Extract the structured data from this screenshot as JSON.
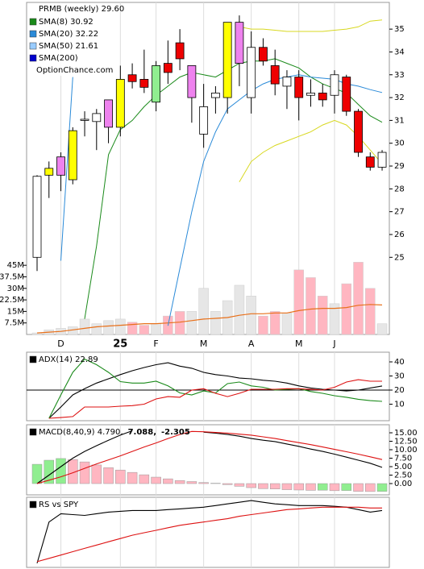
{
  "chart_data": [
    {
      "type": "candlestick",
      "title": "PRMB (weekly) 29.60",
      "watermark": "OptionChance.com",
      "grid": true,
      "categories": [
        null,
        null,
        "D",
        null,
        null,
        null,
        null,
        "25",
        null,
        null,
        "F",
        null,
        null,
        null,
        "M",
        null,
        null,
        null,
        "A",
        null,
        null,
        null,
        "M",
        null,
        null,
        "J",
        null,
        null,
        null,
        null
      ],
      "open": [
        25.0,
        28.6,
        28.6,
        28.4,
        31.0,
        30.95,
        30.7,
        30.7,
        33.0,
        32.8,
        31.8,
        33.5,
        34.4,
        32.0,
        30.4,
        32.0,
        32.0,
        33.5,
        32.0,
        34.2,
        33.4,
        32.5,
        32.9,
        32.2,
        32.2,
        32.1,
        32.9,
        31.4,
        29.4,
        28.95
      ],
      "high": [
        28.6,
        29.2,
        29.6,
        30.7,
        31.4,
        31.5,
        31.9,
        33.4,
        33.5,
        34.1,
        33.6,
        34.5,
        35.0,
        33.3,
        32.6,
        32.5,
        35.3,
        35.6,
        34.9,
        34.6,
        34.1,
        33.2,
        33.2,
        32.8,
        32.6,
        33.2,
        33.0,
        31.5,
        29.6,
        29.7
      ],
      "low": [
        24.4,
        27.6,
        27.9,
        28.2,
        30.3,
        29.7,
        30.0,
        30.3,
        32.4,
        32.2,
        31.4,
        32.6,
        33.2,
        30.9,
        29.8,
        31.3,
        31.3,
        32.5,
        31.3,
        33.4,
        32.1,
        31.5,
        31.0,
        31.6,
        31.6,
        31.3,
        31.2,
        29.4,
        28.8,
        28.8
      ],
      "close": [
        28.55,
        28.9,
        29.4,
        30.55,
        31.05,
        31.3,
        31.9,
        32.8,
        32.7,
        32.45,
        33.4,
        33.1,
        33.7,
        33.4,
        31.6,
        32.2,
        35.3,
        35.3,
        34.2,
        33.6,
        32.6,
        32.9,
        32.0,
        32.1,
        31.9,
        33.0,
        31.4,
        29.6,
        28.95,
        29.6
      ],
      "colors": [
        "#ffffff",
        "#ffff00",
        "#ee82ee",
        "#ffff00",
        "#ffffff",
        "#ffffff",
        "#ee82ee",
        "#ffff00",
        "#ee0000",
        "#ee0000",
        "#90ee90",
        "#ee0000",
        "#ee0000",
        "#ee82ee",
        "#ffffff",
        "#ffffff",
        "#ffff00",
        "#ee82ee",
        "#ffffff",
        "#ee0000",
        "#ee0000",
        "#ffffff",
        "#ee0000",
        "#ffffff",
        "#ee0000",
        "#ffffff",
        "#ee0000",
        "#ee0000",
        "#ee0000",
        "#ffffff"
      ],
      "ylim": [
        21.62,
        36.17
      ],
      "yticks": [
        25,
        26,
        27,
        28,
        29,
        30,
        31,
        32,
        33,
        34,
        35
      ],
      "volume": {
        "values": [
          1,
          3,
          4,
          5,
          10,
          7,
          9,
          10,
          8,
          6,
          7,
          12,
          15,
          15,
          30,
          15,
          22,
          32,
          25,
          12,
          15,
          14,
          42,
          37,
          25,
          20,
          33,
          47,
          30,
          7
        ],
        "up_color": "#e6e6e6",
        "down_color": "#ffb6c1",
        "ylim": [
          0,
          216
        ],
        "yticks": [
          {
            "value": 7.5,
            "label": "7.5M"
          },
          {
            "value": 15,
            "label": "15M"
          },
          {
            "value": 22.5,
            "label": "22.5M"
          },
          {
            "value": 30,
            "label": "30M"
          },
          {
            "value": 37.5,
            "label": "37.5M"
          },
          {
            "value": 45,
            "label": "45M"
          }
        ]
      },
      "volume_ma": {
        "color": "#e8701a",
        "values": [
          1,
          1.5,
          2,
          3,
          4,
          5,
          5.5,
          6,
          6.5,
          7,
          7,
          7.5,
          8,
          9,
          10,
          10.5,
          11,
          12.5,
          13.5,
          13.5,
          14,
          14,
          15.5,
          16.5,
          17,
          17,
          17.5,
          19,
          19.5,
          19.2
        ]
      },
      "bands": [
        {
          "color": "#d8d820",
          "values": [
            null,
            null,
            null,
            null,
            null,
            null,
            null,
            null,
            null,
            null,
            null,
            null,
            null,
            null,
            null,
            null,
            null,
            35.1,
            35.0,
            35.0,
            34.95,
            34.9,
            34.9,
            34.9,
            34.9,
            34.95,
            35.0,
            35.1,
            35.35,
            35.4
          ]
        },
        {
          "color": "#d8d820",
          "values": [
            null,
            null,
            null,
            null,
            null,
            null,
            null,
            null,
            null,
            null,
            null,
            null,
            null,
            null,
            null,
            null,
            null,
            28.3,
            29.2,
            29.6,
            29.9,
            30.1,
            30.3,
            30.5,
            30.8,
            31.0,
            30.8,
            30.3,
            29.7,
            29.1
          ]
        }
      ],
      "series": [
        {
          "name": "SMA(8) 30.92",
          "color": "#1a8a1a",
          "values": [
            null,
            null,
            null,
            null,
            22.3,
            25.5,
            29.5,
            30.6,
            31.0,
            31.6,
            32.1,
            32.5,
            32.9,
            33.1,
            33.0,
            32.9,
            33.2,
            33.5,
            33.6,
            33.6,
            33.7,
            33.5,
            33.3,
            32.9,
            32.6,
            32.4,
            32.2,
            31.7,
            31.2,
            30.92
          ]
        },
        {
          "name": "SMA(20) 32.22",
          "color": "#2a8ad8",
          "values": [
            null,
            null,
            24.85,
            32.9,
            null,
            null,
            null,
            null,
            null,
            null,
            null,
            22.0,
            24.5,
            27.0,
            29.2,
            30.5,
            31.5,
            31.9,
            32.3,
            32.6,
            32.8,
            32.9,
            33.0,
            32.9,
            32.85,
            32.8,
            32.6,
            32.5,
            32.35,
            32.22
          ]
        },
        {
          "name": "SMA(50) 21.61",
          "color": "#99ccff"
        },
        {
          "name": "SMA(200)",
          "color": "#0000cc"
        }
      ]
    },
    {
      "type": "line",
      "grid": true,
      "ylim": [
        -1.71,
        46.86
      ],
      "yticks": [
        10,
        20,
        30,
        40
      ],
      "reference_line": 20,
      "series": [
        {
          "name": "ADX(14) 22.89",
          "color": "#000000",
          "values": [
            null,
            0,
            8,
            16.6,
            21,
            25,
            28,
            31,
            33.7,
            36,
            38,
            39.4,
            37,
            35.5,
            32.6,
            31,
            30,
            28.5,
            28,
            27,
            26.3,
            25,
            23,
            21.5,
            20.6,
            20,
            19.4,
            20,
            21.5,
            22.89
          ]
        },
        {
          "color": "#1a8a1a",
          "values": [
            null,
            0,
            16.6,
            32.6,
            42,
            38,
            32.6,
            26,
            25,
            25,
            26.3,
            23,
            18,
            16.6,
            19.4,
            18,
            24.6,
            25.7,
            23,
            22,
            20,
            20.5,
            21,
            19,
            17.7,
            16,
            14.9,
            13.5,
            12.5,
            12
          ]
        },
        {
          "color": "#dd1111",
          "values": [
            null,
            0,
            0.5,
            1.2,
            8,
            8,
            8,
            8.6,
            9,
            10,
            13.7,
            15.4,
            14.9,
            20,
            21,
            17.7,
            15.4,
            17.7,
            20.6,
            20.6,
            20.6,
            21,
            21,
            20.5,
            20,
            22,
            25.7,
            27.4,
            26.3,
            26.3
          ]
        }
      ]
    },
    {
      "type": "macd",
      "grid": true,
      "ylim": [
        -3.33,
        17.38
      ],
      "yticks": [
        {
          "value": 0,
          "label": "0.00"
        },
        {
          "value": 2.5,
          "label": "2.50"
        },
        {
          "value": 5,
          "label": "5.00"
        },
        {
          "value": 7.5,
          "label": "7.50"
        },
        {
          "value": 10,
          "label": "10.00"
        },
        {
          "value": 12.5,
          "label": "12.50"
        },
        {
          "value": 15,
          "label": "15.00"
        }
      ],
      "series": [
        {
          "name": "MACD(8,40,9) 4.790,",
          "color": "#000000",
          "values": [
            0,
            2.5,
            5,
            7.5,
            9.5,
            11.2,
            12.8,
            14.3,
            15.6,
            null,
            null,
            null,
            null,
            null,
            15.2,
            14.9,
            14.5,
            14.0,
            13.3,
            12.8,
            12.4,
            11.7,
            11.0,
            10.2,
            9.5,
            8.7,
            7.8,
            6.9,
            6.0,
            4.79
          ]
        },
        {
          "name": "7.088,",
          "color": "#dd1111",
          "values": [
            0,
            1,
            2,
            3.2,
            4.5,
            5.8,
            7,
            8.2,
            9.5,
            10.8,
            12,
            13.3,
            14.5,
            15.4,
            15.3,
            15.1,
            14.9,
            14.6,
            14.3,
            13.8,
            13.3,
            12.7,
            12.1,
            11.5,
            10.8,
            10.1,
            9.4,
            8.7,
            7.9,
            7.088
          ]
        }
      ],
      "histogram": {
        "name": "-2.305",
        "name_color": "#2255bb",
        "up_color": "#90ee90",
        "down_color": "#ffb6c1",
        "values": [
          5.7,
          6.9,
          7.4,
          7.1,
          6.4,
          5.5,
          4.7,
          4.0,
          3.3,
          2.6,
          1.9,
          1.4,
          0.9,
          0.6,
          0.3,
          0.1,
          -0.3,
          -0.8,
          -1.2,
          -1.5,
          -1.6,
          -1.8,
          -1.9,
          -2.0,
          -1.95,
          -2.1,
          -2.05,
          -2.3,
          -2.35,
          -2.305
        ]
      }
    },
    {
      "type": "line",
      "grid": true,
      "ylim": [
        0,
        100
      ],
      "series": [
        {
          "name": "RS vs SPY",
          "color": "#000000",
          "values": [
            5.9,
            64.7,
            76.5,
            75.3,
            74.1,
            76.5,
            78.8,
            80,
            81.2,
            81.2,
            81.2,
            82.4,
            83.5,
            84.7,
            85.9,
            88.2,
            90.6,
            92.9,
            95.3,
            92.9,
            90.6,
            89.4,
            88.2,
            88.2,
            88.2,
            87.1,
            85.9,
            82.4,
            78.8,
            81.2
          ]
        },
        {
          "color": "#dd1111",
          "values": [
            8.2,
            12.9,
            17.6,
            22.4,
            27.1,
            31.8,
            36.5,
            41.2,
            45.9,
            49.4,
            52.9,
            56.5,
            60,
            62.4,
            64.7,
            67.1,
            69.4,
            72.9,
            75.3,
            77.6,
            80,
            82.4,
            83.5,
            84.7,
            85.9,
            85.9,
            85.9,
            85.9,
            84.7,
            84.7
          ]
        }
      ]
    }
  ]
}
